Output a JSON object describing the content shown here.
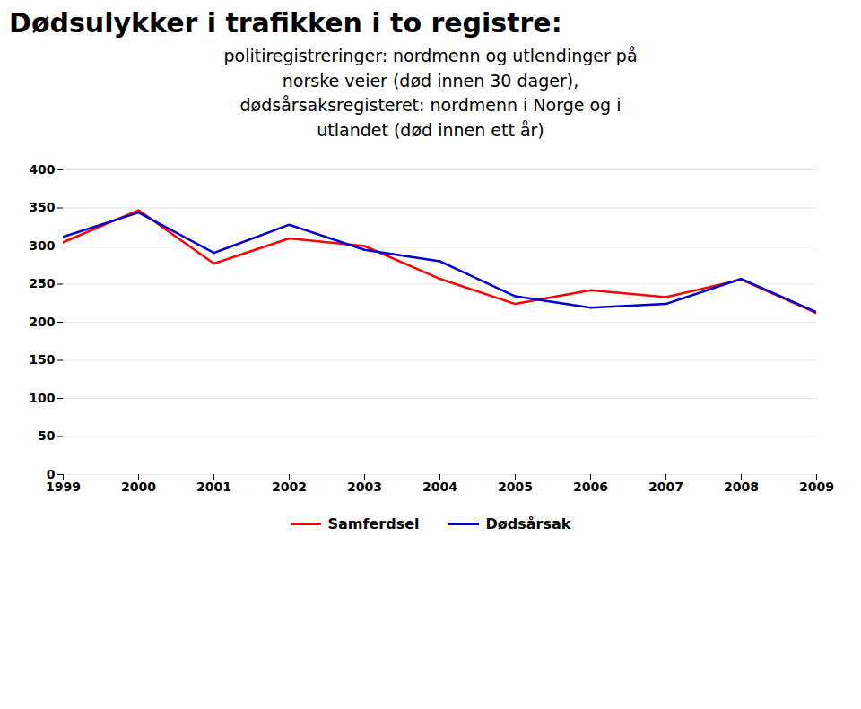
{
  "chart_data": {
    "type": "line",
    "title": "Dødsulykker i trafikken i to registre:",
    "subtitle": [
      "politiregistreringer: nordmenn og utlendinger på",
      "norske veier (død innen 30 dager),",
      "dødsårsaksregisteret: nordmenn i Norge og i",
      "utlandet (død innen ett år)"
    ],
    "x": [
      1999,
      2000,
      2001,
      2002,
      2003,
      2004,
      2005,
      2006,
      2007,
      2008,
      2009
    ],
    "series": [
      {
        "name": "Samferdsel",
        "color": "#FF0000",
        "values": [
          305,
          347,
          277,
          310,
          300,
          257,
          224,
          242,
          233,
          256,
          212
        ]
      },
      {
        "name": "Dødsårsak",
        "color": "#0000CC",
        "values": [
          312,
          344,
          291,
          328,
          295,
          280,
          234,
          219,
          224,
          257,
          213
        ]
      }
    ],
    "xlim": [
      1999,
      2009
    ],
    "xticks": [
      1999,
      2000,
      2001,
      2002,
      2003,
      2004,
      2005,
      2006,
      2007,
      2008,
      2009
    ],
    "ylim": [
      0,
      400
    ],
    "yticks": [
      0,
      50,
      100,
      150,
      200,
      250,
      300,
      350,
      400
    ],
    "grid": true,
    "legend": "bottom"
  }
}
